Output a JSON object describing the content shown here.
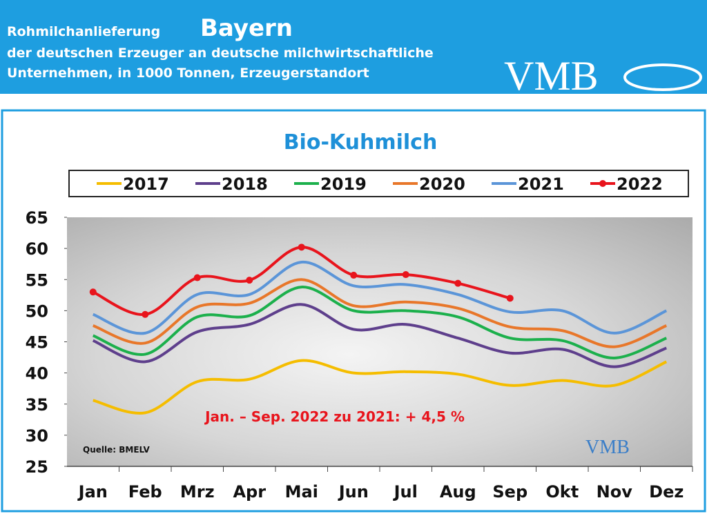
{
  "header": {
    "prefix": "Rohmilchanlieferung",
    "region": "Bayern",
    "line2": "der deutschen Erzeuger an deutsche milchwirtschaftliche",
    "line3": "Unternehmen, in 1000 Tonnen, Erzeugerstandort",
    "logo": "VMB"
  },
  "chart_data": {
    "type": "line",
    "title": "Bio-Kuhmilch",
    "categories": [
      "Jan",
      "Feb",
      "Mrz",
      "Apr",
      "Mai",
      "Jun",
      "Jul",
      "Aug",
      "Sep",
      "Okt",
      "Nov",
      "Dez"
    ],
    "series": [
      {
        "name": "2017",
        "color": "#f5bd00",
        "values": [
          35.6,
          33.6,
          38.6,
          39.0,
          42.0,
          40.0,
          40.2,
          39.8,
          38.0,
          38.8,
          38.0,
          41.8
        ]
      },
      {
        "name": "2018",
        "color": "#5e3f8c",
        "values": [
          45.2,
          41.8,
          46.6,
          47.8,
          51.0,
          47.0,
          47.8,
          45.6,
          43.2,
          43.8,
          41.0,
          44.0
        ]
      },
      {
        "name": "2019",
        "color": "#1cb04c",
        "values": [
          46.0,
          43.0,
          49.0,
          49.2,
          53.8,
          50.0,
          50.0,
          49.0,
          45.6,
          45.2,
          42.4,
          45.6
        ]
      },
      {
        "name": "2020",
        "color": "#e8772a",
        "values": [
          47.6,
          44.8,
          50.6,
          51.2,
          55.0,
          50.8,
          51.4,
          50.4,
          47.4,
          46.8,
          44.2,
          47.6
        ]
      },
      {
        "name": "2021",
        "color": "#5b95d8",
        "values": [
          49.4,
          46.4,
          52.6,
          52.6,
          57.8,
          54.0,
          54.2,
          52.6,
          49.8,
          50.0,
          46.4,
          50.0
        ]
      },
      {
        "name": "2022",
        "color": "#e8141c",
        "markers": true,
        "values": [
          53.0,
          49.4,
          55.3,
          54.9,
          60.2,
          55.7,
          55.8,
          54.4,
          52.0,
          null,
          null,
          null
        ]
      }
    ],
    "ylim": [
      25,
      65
    ],
    "yticks": [
      25,
      30,
      35,
      40,
      45,
      50,
      55,
      60,
      65
    ],
    "annotation": "Jan. – Sep. 2022 zu 2021: + 4,5 %",
    "source": "Quelle: BMELV"
  }
}
